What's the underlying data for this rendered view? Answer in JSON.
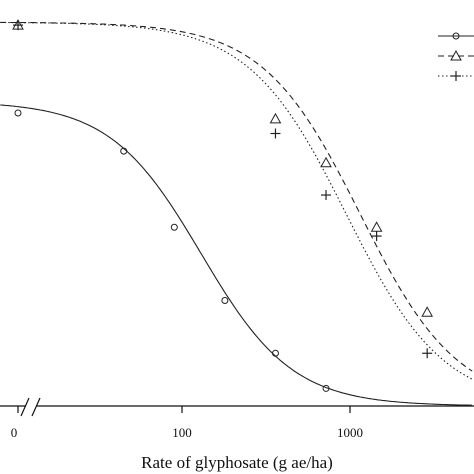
{
  "chart_data": {
    "type": "scatter",
    "title": "",
    "xlabel": "Rate of glyphosate (g ae/ha)",
    "ylabel": "",
    "x_scale": "log",
    "x_tick_labels": [
      "0",
      "100",
      "1000"
    ],
    "x_axis_break": true,
    "legend": {
      "position": "top-right",
      "entries": [
        "",
        "",
        ""
      ]
    },
    "grid": false,
    "series": [
      {
        "marker": "circle",
        "line": "solid",
        "points": [
          {
            "x": 0,
            "y": 100
          },
          {
            "x": 45,
            "y": 87
          },
          {
            "x": 90,
            "y": 61
          },
          {
            "x": 180,
            "y": 36
          },
          {
            "x": 360,
            "y": 18
          },
          {
            "x": 720,
            "y": 6
          }
        ],
        "curve": {
          "top": 104,
          "ed50": 130,
          "slope": 1.6
        }
      },
      {
        "marker": "triangle",
        "line": "dashed",
        "points": [
          {
            "x": 0,
            "y": 130
          },
          {
            "x": 360,
            "y": 98
          },
          {
            "x": 720,
            "y": 83
          },
          {
            "x": 1440,
            "y": 61
          },
          {
            "x": 2880,
            "y": 32
          }
        ],
        "curve": {
          "top": 131,
          "ed50": 1150,
          "slope": 1.5
        }
      },
      {
        "marker": "plus",
        "line": "dotted",
        "points": [
          {
            "x": 0,
            "y": 130
          },
          {
            "x": 360,
            "y": 93
          },
          {
            "x": 720,
            "y": 72
          },
          {
            "x": 1440,
            "y": 58
          },
          {
            "x": 2880,
            "y": 18
          }
        ],
        "curve": {
          "top": 131,
          "ed50": 950,
          "slope": 1.5
        }
      }
    ]
  }
}
